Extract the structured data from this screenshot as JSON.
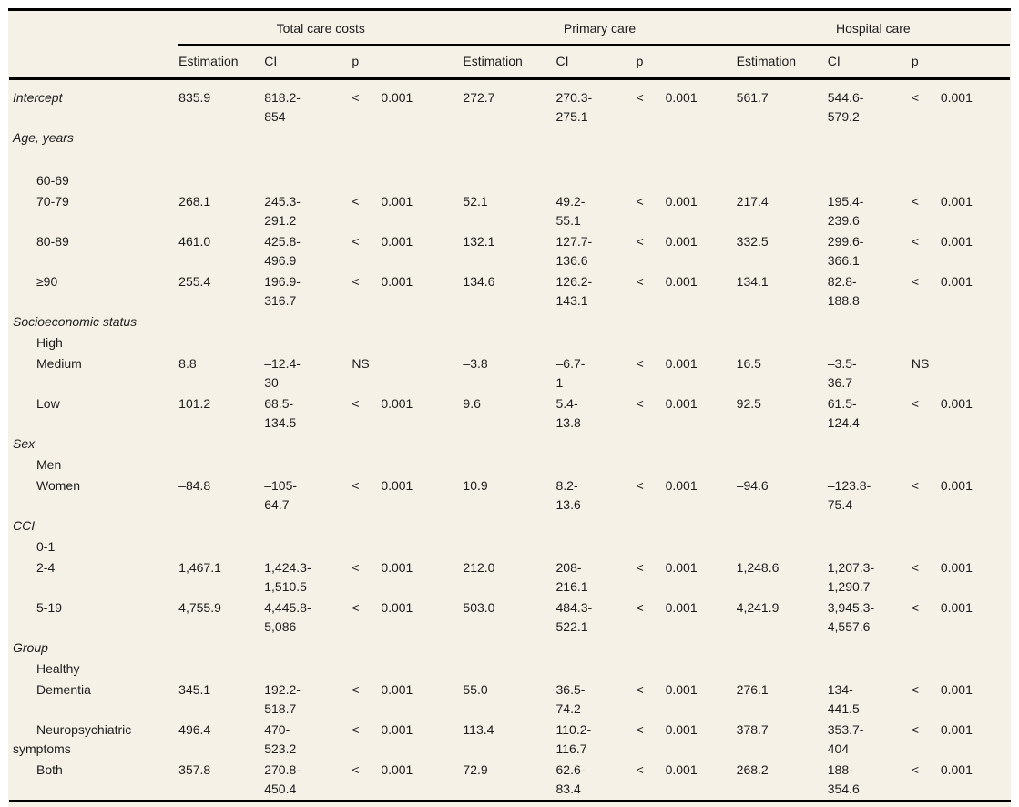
{
  "page": {
    "background_color": "#ffffff",
    "table_background_color": "#f5f1e7",
    "text_color": "#1c1c1c",
    "rule_color": "#000000"
  },
  "table": {
    "column_groups": [
      {
        "label": "Total care costs"
      },
      {
        "label": "Primary care"
      },
      {
        "label": "Hospital care"
      }
    ],
    "column_headers": {
      "estimation": "Estimation",
      "ci": "CI",
      "p": "p"
    },
    "rows": [
      {
        "label": "Intercept",
        "type": "section",
        "italic": true,
        "cells": [
          {
            "est": "835.9",
            "ci": "818.2-\n854",
            "p_sign": "<",
            "p_val": "0.001"
          },
          {
            "est": "272.7",
            "ci": "270.3-\n275.1",
            "p_sign": "<",
            "p_val": "0.001"
          },
          {
            "est": "561.7",
            "ci": "544.6-\n579.2",
            "p_sign": "<",
            "p_val": "0.001"
          }
        ]
      },
      {
        "label": "Age, years",
        "type": "section",
        "italic": true,
        "cells": null
      },
      {
        "type": "spacer"
      },
      {
        "label": "60-69",
        "type": "sub",
        "cells": null
      },
      {
        "label": "70-79",
        "type": "sub",
        "cells": [
          {
            "est": "268.1",
            "ci": "245.3-\n291.2",
            "p_sign": "<",
            "p_val": "0.001"
          },
          {
            "est": "52.1",
            "ci": "49.2-\n55.1",
            "p_sign": "<",
            "p_val": "0.001"
          },
          {
            "est": "217.4",
            "ci": "195.4-\n239.6",
            "p_sign": "<",
            "p_val": "0.001"
          }
        ]
      },
      {
        "label": "80-89",
        "type": "sub",
        "cells": [
          {
            "est": "461.0",
            "ci": "425.8-\n496.9",
            "p_sign": "<",
            "p_val": "0.001"
          },
          {
            "est": "132.1",
            "ci": "127.7-\n136.6",
            "p_sign": "<",
            "p_val": "0.001"
          },
          {
            "est": "332.5",
            "ci": "299.6-\n366.1",
            "p_sign": "<",
            "p_val": "0.001"
          }
        ]
      },
      {
        "label": "≥90",
        "type": "sub",
        "cells": [
          {
            "est": "255.4",
            "ci": "196.9-\n316.7",
            "p_sign": "<",
            "p_val": "0.001"
          },
          {
            "est": "134.6",
            "ci": "126.2-\n143.1",
            "p_sign": "<",
            "p_val": "0.001"
          },
          {
            "est": "134.1",
            "ci": "82.8-\n188.8",
            "p_sign": "<",
            "p_val": "0.001"
          }
        ]
      },
      {
        "label": "Socioeconomic status",
        "type": "section",
        "italic": true,
        "cells": null
      },
      {
        "label": "High",
        "type": "sub",
        "cells": null
      },
      {
        "label": "Medium",
        "type": "sub",
        "cells": [
          {
            "est": "8.8",
            "ci": "–12.4-\n30",
            "p_sign": "NS",
            "p_val": ""
          },
          {
            "est": "–3.8",
            "ci": "–6.7-\n1",
            "p_sign": "<",
            "p_val": "0.001"
          },
          {
            "est": "16.5",
            "ci": "–3.5-\n36.7",
            "p_sign": "NS",
            "p_val": ""
          }
        ]
      },
      {
        "label": "Low",
        "type": "sub",
        "cells": [
          {
            "est": "101.2",
            "ci": "68.5-\n134.5",
            "p_sign": "<",
            "p_val": "0.001"
          },
          {
            "est": "9.6",
            "ci": "5.4-\n13.8",
            "p_sign": "<",
            "p_val": "0.001"
          },
          {
            "est": "92.5",
            "ci": "61.5-\n124.4",
            "p_sign": "<",
            "p_val": "0.001"
          }
        ]
      },
      {
        "label": "Sex",
        "type": "section",
        "italic": true,
        "cells": null
      },
      {
        "label": "Men",
        "type": "sub",
        "cells": null
      },
      {
        "label": "Women",
        "type": "sub",
        "cells": [
          {
            "est": "–84.8",
            "ci": "–105-\n64.7",
            "p_sign": "<",
            "p_val": "0.001"
          },
          {
            "est": "10.9",
            "ci": "8.2-\n13.6",
            "p_sign": "<",
            "p_val": "0.001"
          },
          {
            "est": "–94.6",
            "ci": "–123.8-\n75.4",
            "p_sign": "<",
            "p_val": "0.001"
          }
        ]
      },
      {
        "label": "CCI",
        "type": "section",
        "italic": true,
        "cells": null
      },
      {
        "label": "0-1",
        "type": "sub",
        "cells": null
      },
      {
        "label": "2-4",
        "type": "sub",
        "cells": [
          {
            "est": "1,467.1",
            "ci": "1,424.3-\n1,510.5",
            "p_sign": "<",
            "p_val": "0.001"
          },
          {
            "est": "212.0",
            "ci": "208-\n216.1",
            "p_sign": "<",
            "p_val": "0.001"
          },
          {
            "est": "1,248.6",
            "ci": "1,207.3-\n1,290.7",
            "p_sign": "<",
            "p_val": "0.001"
          }
        ]
      },
      {
        "label": "5-19",
        "type": "sub",
        "cells": [
          {
            "est": "4,755.9",
            "ci": "4,445.8-\n5,086",
            "p_sign": "<",
            "p_val": "0.001"
          },
          {
            "est": "503.0",
            "ci": "484.3-\n522.1",
            "p_sign": "<",
            "p_val": "0.001"
          },
          {
            "est": "4,241.9",
            "ci": "3,945.3-\n4,557.6",
            "p_sign": "<",
            "p_val": "0.001"
          }
        ]
      },
      {
        "label": "Group",
        "type": "section",
        "italic": true,
        "cells": null
      },
      {
        "label": "Healthy",
        "type": "sub",
        "cells": null
      },
      {
        "label": "Dementia",
        "type": "sub",
        "cells": [
          {
            "est": "345.1",
            "ci": "192.2-\n518.7",
            "p_sign": "<",
            "p_val": "0.001"
          },
          {
            "est": "55.0",
            "ci": "36.5-\n74.2",
            "p_sign": "<",
            "p_val": "0.001"
          },
          {
            "est": "276.1",
            "ci": "134-\n441.5",
            "p_sign": "<",
            "p_val": "0.001"
          }
        ]
      },
      {
        "label": "Neuropsychiatric symptoms",
        "type": "sub",
        "cells": [
          {
            "est": "496.4",
            "ci": "470-\n523.2",
            "p_sign": "<",
            "p_val": "0.001"
          },
          {
            "est": "113.4",
            "ci": "110.2-\n116.7",
            "p_sign": "<",
            "p_val": "0.001"
          },
          {
            "est": "378.7",
            "ci": "353.7-\n404",
            "p_sign": "<",
            "p_val": "0.001"
          }
        ]
      },
      {
        "label": "Both",
        "type": "sub",
        "cells": [
          {
            "est": "357.8",
            "ci": "270.8-\n450.4",
            "p_sign": "<",
            "p_val": "0.001"
          },
          {
            "est": "72.9",
            "ci": "62.6-\n83.4",
            "p_sign": "<",
            "p_val": "0.001"
          },
          {
            "est": "268.2",
            "ci": "188-\n354.6",
            "p_sign": "<",
            "p_val": "0.001"
          }
        ]
      }
    ]
  }
}
